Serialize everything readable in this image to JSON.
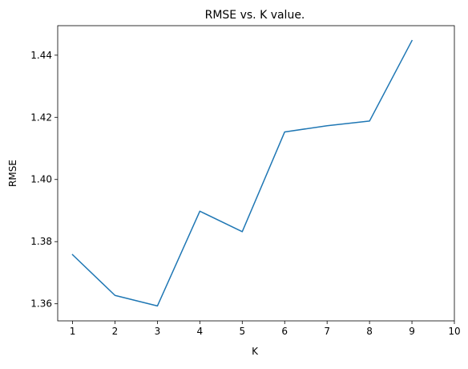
{
  "chart_data": {
    "type": "line",
    "title": "RMSE vs. K value.",
    "xlabel": "K",
    "ylabel": "RMSE",
    "xlim": [
      0.65,
      10
    ],
    "ylim": [
      1.3545,
      1.4495
    ],
    "x_ticks": [
      "1",
      "2",
      "3",
      "4",
      "5",
      "6",
      "7",
      "8",
      "9",
      "10"
    ],
    "y_ticks": [
      "1.36",
      "1.38",
      "1.40",
      "1.42",
      "1.44"
    ],
    "grid": false,
    "series": [
      {
        "color": "#1f77b4",
        "x": [
          1,
          2,
          3,
          4,
          5,
          6,
          7,
          8,
          9
        ],
        "y": [
          1.3758,
          1.3627,
          1.3593,
          1.3898,
          1.3832,
          1.4153,
          1.4173,
          1.4188,
          1.4447
        ]
      }
    ]
  }
}
